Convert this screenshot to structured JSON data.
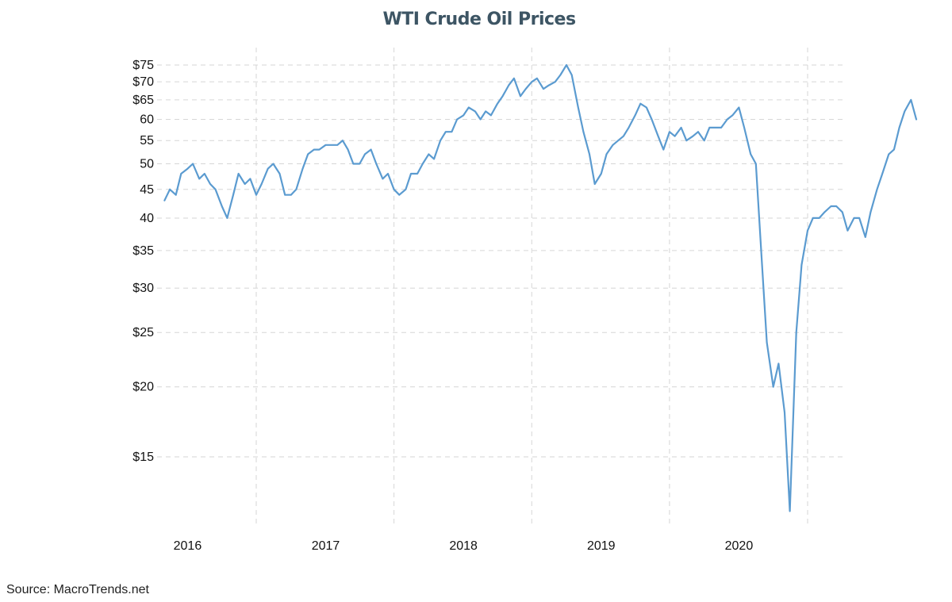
{
  "chart_data": {
    "type": "line",
    "title": "WTI Crude Oil Prices",
    "source": "Source: MacroTrends.net",
    "y_scale": "log",
    "y_ticks": [
      15,
      20,
      25,
      30,
      35,
      40,
      45,
      50,
      55,
      60,
      65,
      70,
      75
    ],
    "y_tick_labels": [
      "$15",
      "$20",
      "$25",
      "$30",
      "$35",
      "40",
      "45",
      "50",
      "55",
      "60",
      "$65",
      "$70",
      "$75"
    ],
    "x_tick_labels": [
      "2016",
      "2017",
      "2018",
      "2019",
      "2020"
    ],
    "ylim": [
      11.9,
      76.5
    ],
    "grid": true,
    "line_color": "#5b9bd0",
    "series": [
      {
        "x": [
          "2015-11-01",
          "2015-11-15",
          "2015-12-01",
          "2015-12-15",
          "2016-01-01",
          "2016-01-15",
          "2016-02-01",
          "2016-02-15",
          "2016-03-01",
          "2016-03-15",
          "2016-04-01",
          "2016-04-15",
          "2016-05-01",
          "2016-05-15",
          "2016-06-01",
          "2016-06-15",
          "2016-07-01",
          "2016-07-15",
          "2016-08-01",
          "2016-08-15",
          "2016-09-01",
          "2016-09-15",
          "2016-10-01",
          "2016-10-15",
          "2016-11-01",
          "2016-11-15",
          "2016-12-01",
          "2016-12-15",
          "2017-01-01",
          "2017-01-15",
          "2017-02-01",
          "2017-02-15",
          "2017-03-01",
          "2017-03-15",
          "2017-04-01",
          "2017-04-15",
          "2017-05-01",
          "2017-05-15",
          "2017-06-01",
          "2017-06-15",
          "2017-07-01",
          "2017-07-15",
          "2017-08-01",
          "2017-08-15",
          "2017-09-01",
          "2017-09-15",
          "2017-10-01",
          "2017-10-15",
          "2017-11-01",
          "2017-11-15",
          "2017-12-01",
          "2017-12-15",
          "2018-01-01",
          "2018-01-15",
          "2018-02-01",
          "2018-02-15",
          "2018-03-01",
          "2018-03-15",
          "2018-04-01",
          "2018-04-15",
          "2018-05-01",
          "2018-05-15",
          "2018-06-01",
          "2018-06-15",
          "2018-07-01",
          "2018-07-15",
          "2018-08-01",
          "2018-08-15",
          "2018-09-01",
          "2018-09-15",
          "2018-10-01",
          "2018-10-15",
          "2018-11-01",
          "2018-11-15",
          "2018-12-01",
          "2018-12-15",
          "2019-01-01",
          "2019-01-15",
          "2019-02-01",
          "2019-02-15",
          "2019-03-01",
          "2019-03-15",
          "2019-04-01",
          "2019-04-15",
          "2019-05-01",
          "2019-05-15",
          "2019-06-01",
          "2019-06-15",
          "2019-07-01",
          "2019-07-15",
          "2019-08-01",
          "2019-08-15",
          "2019-09-01",
          "2019-09-15",
          "2019-10-01",
          "2019-10-15",
          "2019-11-01",
          "2019-11-15",
          "2019-12-01",
          "2019-12-15",
          "2020-01-01",
          "2020-01-15",
          "2020-02-01",
          "2020-02-15",
          "2020-03-01",
          "2020-03-15",
          "2020-04-01",
          "2020-04-15",
          "2020-05-01",
          "2020-05-15",
          "2020-06-01",
          "2020-06-15",
          "2020-07-01",
          "2020-07-15",
          "2020-08-01",
          "2020-08-15",
          "2020-09-01",
          "2020-09-15",
          "2020-10-01",
          "2020-10-15",
          "2020-11-01",
          "2020-11-15",
          "2020-12-01",
          "2020-12-15",
          "2021-01-01",
          "2021-01-15",
          "2021-02-01",
          "2021-02-15",
          "2021-03-01",
          "2021-03-15",
          "2021-04-01",
          "2021-04-15"
        ],
        "values": [
          43,
          45,
          44,
          48,
          49,
          50,
          47,
          48,
          46,
          45,
          42,
          40,
          44,
          48,
          46,
          47,
          44,
          46,
          49,
          50,
          48,
          44,
          44,
          45,
          49,
          52,
          53,
          53,
          54,
          54,
          54,
          55,
          53,
          50,
          50,
          52,
          53,
          50,
          47,
          48,
          45,
          44,
          45,
          48,
          48,
          50,
          52,
          51,
          55,
          57,
          57,
          60,
          61,
          63,
          62,
          60,
          62,
          61,
          64,
          66,
          69,
          71,
          66,
          68,
          70,
          71,
          68,
          69,
          70,
          72,
          75,
          72,
          63,
          57,
          52,
          46,
          48,
          52,
          54,
          55,
          56,
          58,
          61,
          64,
          63,
          60,
          56,
          53,
          57,
          56,
          58,
          55,
          56,
          57,
          55,
          58,
          58,
          58,
          60,
          61,
          63,
          58,
          52,
          50,
          34,
          24,
          20,
          22,
          18,
          12,
          25,
          33,
          38,
          40,
          40,
          41,
          42,
          42,
          41,
          38,
          40,
          40,
          37,
          41,
          45,
          48,
          52,
          53,
          58,
          62,
          65,
          60
        ],
        "line_color": "#5b9bd0"
      }
    ]
  }
}
